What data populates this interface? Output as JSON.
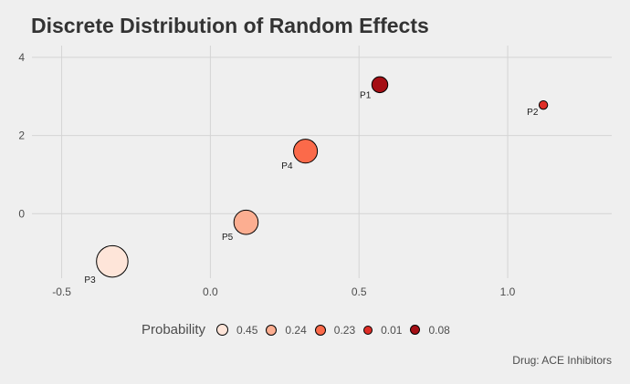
{
  "chart_data": {
    "type": "scatter",
    "title": "Discrete Distribution of Random Effects",
    "caption": "Drug: ACE Inhibitors",
    "xlabel": "",
    "ylabel": "",
    "xlim": [
      -0.6,
      1.35
    ],
    "ylim": [
      -1.65,
      4.3
    ],
    "x_ticks": [
      -0.5,
      0.0,
      0.5,
      1.0
    ],
    "x_tick_labels": [
      "-0.5",
      "0.0",
      "0.5",
      "1.0"
    ],
    "y_ticks": [
      0,
      2,
      4
    ],
    "y_tick_labels": [
      "0",
      "2",
      "4"
    ],
    "grid": true,
    "legend_position": "bottom",
    "legend_title": "Probability",
    "points": [
      {
        "label": "P1",
        "x": 0.57,
        "y": 3.3,
        "probability": 0.08,
        "color": "#a50f15"
      },
      {
        "label": "P2",
        "x": 1.12,
        "y": 2.78,
        "probability": 0.01,
        "color": "#de2d26"
      },
      {
        "label": "P3",
        "x": -0.33,
        "y": -1.22,
        "probability": 0.45,
        "color": "#fee5d9"
      },
      {
        "label": "P4",
        "x": 0.32,
        "y": 1.6,
        "probability": 0.23,
        "color": "#fb6a4a"
      },
      {
        "label": "P5",
        "x": 0.12,
        "y": -0.22,
        "probability": 0.24,
        "color": "#fcae91"
      }
    ],
    "legend": [
      {
        "label": "0.45",
        "probability": 0.45,
        "color": "#fee5d9"
      },
      {
        "label": "0.24",
        "probability": 0.24,
        "color": "#fcae91"
      },
      {
        "label": "0.23",
        "probability": 0.23,
        "color": "#fb6a4a"
      },
      {
        "label": "0.01",
        "probability": 0.01,
        "color": "#de2d26"
      },
      {
        "label": "0.08",
        "probability": 0.08,
        "color": "#a50f15"
      }
    ]
  }
}
